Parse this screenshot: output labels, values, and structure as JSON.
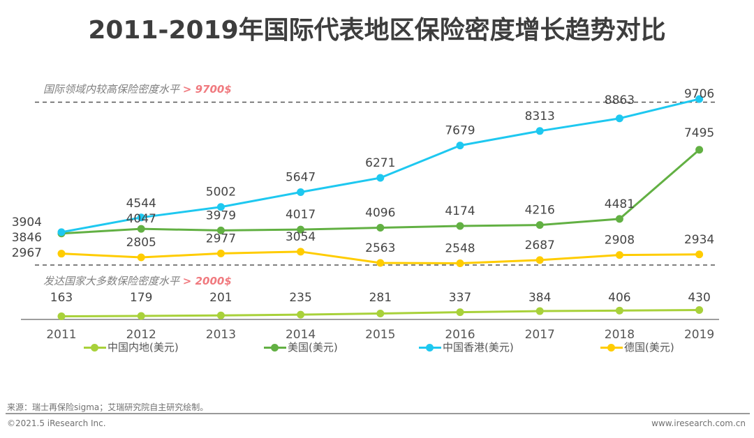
{
  "page": {
    "title": "2011-2019年国际代表地区保险密度增长趋势对比",
    "ref_high": {
      "text": "国际领域内较高保险密度水平",
      "highlight": "> 9700$",
      "value": 9700
    },
    "ref_low": {
      "text": "发达国家大多数保险密度水平",
      "highlight": "> 2000$",
      "value": 2000
    },
    "source": "来源：瑞士再保险sigma；艾瑞研究院自主研究绘制。",
    "copyright": "©2021.5 iResearch Inc.",
    "website": "www.iresearch.com.cn"
  },
  "chart_data": {
    "type": "line",
    "title": "2011-2019年国际代表地区保险密度增长趋势对比",
    "xlabel": "",
    "ylabel": "",
    "x": [
      "2011",
      "2012",
      "2013",
      "2014",
      "2015",
      "2016",
      "2017",
      "2018",
      "2019"
    ],
    "grid": false,
    "legend_position": "bottom",
    "reference_lines": [
      {
        "label": "国际领域内较高保险密度水平 > 9700$",
        "value": 9700
      },
      {
        "label": "发达国家大多数保险密度水平 > 2000$",
        "value": 2000
      }
    ],
    "series": [
      {
        "name": "中国内地(美元)",
        "color": "#a8d13a",
        "values": [
          163,
          179,
          201,
          235,
          281,
          337,
          384,
          406,
          430
        ]
      },
      {
        "name": "美国(美元)",
        "color": "#62b043",
        "values": [
          3846,
          4047,
          3979,
          4017,
          4096,
          4174,
          4216,
          4481,
          7495
        ]
      },
      {
        "name": "中国香港(美元)",
        "color": "#1ec8f0",
        "values": [
          3904,
          4544,
          5002,
          5647,
          6271,
          7679,
          8313,
          8863,
          9706
        ]
      },
      {
        "name": "德国(美元)",
        "color": "#ffcc00",
        "values": [
          2967,
          2805,
          2977,
          3054,
          2563,
          2548,
          2687,
          2908,
          2934
        ]
      }
    ]
  }
}
